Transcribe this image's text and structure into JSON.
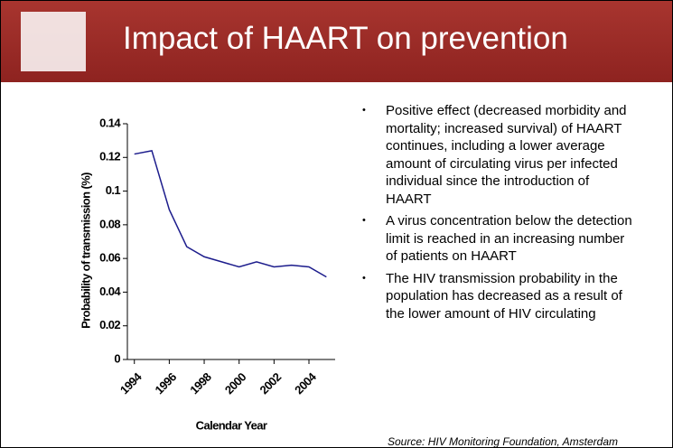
{
  "slide": {
    "title": "Impact of HAART on prevention",
    "bullets": [
      "Positive effect (decreased morbidity and mortality; increased survival) of HAART continues, including a lower average amount of circulating virus per infected individual since the introduction of HAART",
      "A virus concentration below the detection limit is reached in an increasing number of patients on HAART",
      "The HIV transmission probability in the population has decreased as a result of the lower amount of HIV circulating"
    ],
    "bullet_symbol": "•",
    "source": "Source: HIV Monitoring Foundation, Amsterdam"
  },
  "chart_data": {
    "type": "line",
    "x_label": "Calendar Year",
    "y_label": "Probability of transmission (%)",
    "x": [
      1994,
      1995,
      1996,
      1997,
      1998,
      1999,
      2000,
      2001,
      2002,
      2003,
      2004,
      2005
    ],
    "series": [
      {
        "name": "Probability of transmission",
        "color": "#1c1c8c",
        "values": [
          0.122,
          0.124,
          0.089,
          0.067,
          0.061,
          0.058,
          0.055,
          0.058,
          0.055,
          0.056,
          0.055,
          0.049
        ]
      }
    ],
    "xlim": [
      1993.6,
      2005.5
    ],
    "xticks": [
      1994,
      1996,
      1998,
      2000,
      2002,
      2004
    ],
    "ylim": [
      0,
      0.14
    ],
    "yticks": [
      0,
      0.02,
      0.04,
      0.06,
      0.08,
      0.1,
      0.12,
      0.14
    ],
    "grid": false
  }
}
